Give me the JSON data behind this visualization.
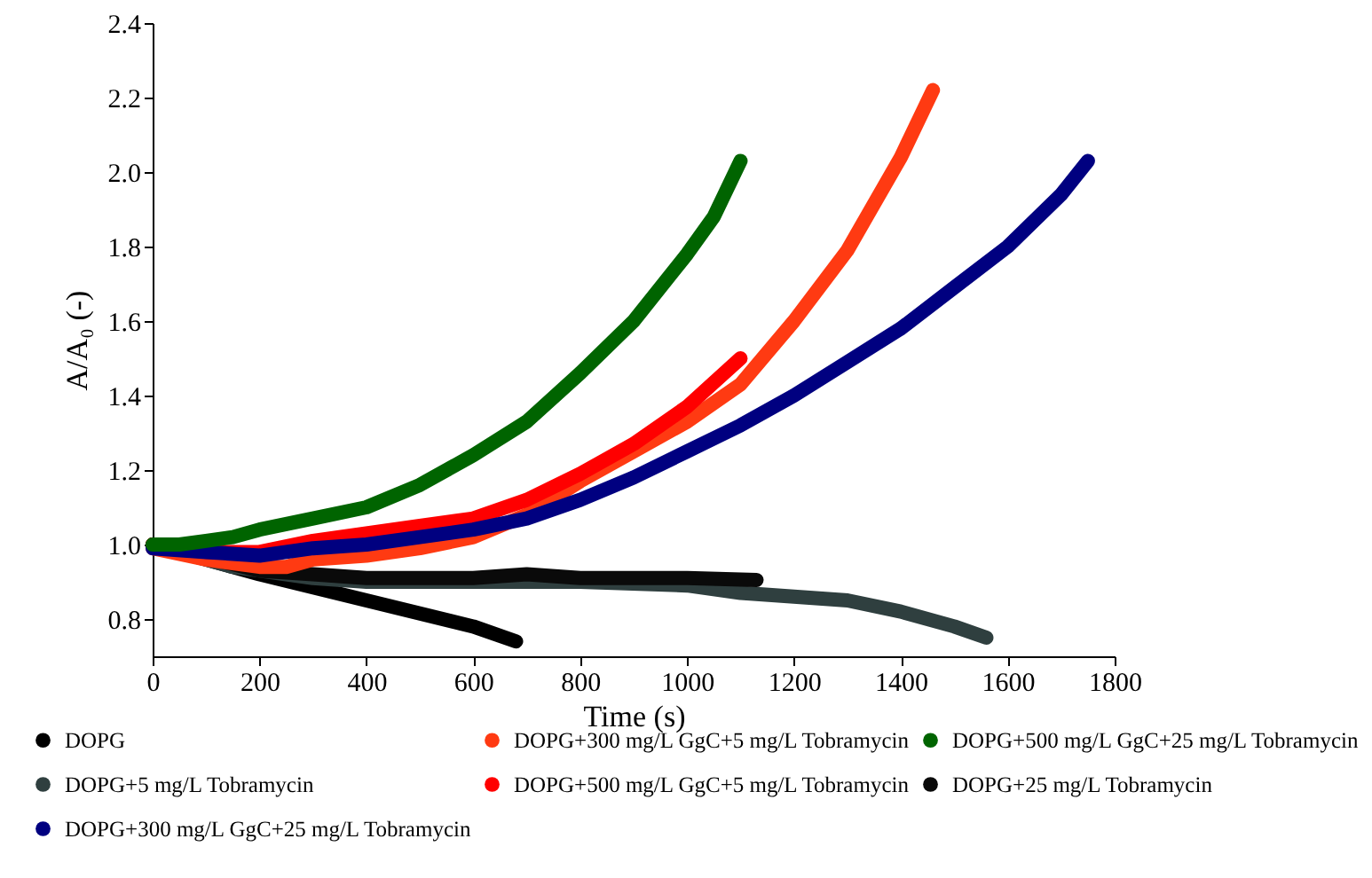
{
  "chart_data": {
    "type": "line",
    "xlabel": "Time (s)",
    "ylabel": "A/A₀ (-)",
    "xlim": [
      0,
      1800
    ],
    "xticks": [
      0,
      200,
      400,
      600,
      800,
      1000,
      1200,
      1400,
      1600,
      1800
    ],
    "ylim": [
      0.7,
      2.4
    ],
    "yticks": [
      0.8,
      {
        "value": 1,
        "label": "1.0"
      },
      1.2,
      1.4,
      1.6,
      1.8,
      {
        "value": 2,
        "label": "2.0"
      },
      2.2,
      2.4
    ],
    "grid": false,
    "legend": "bottom",
    "series": [
      {
        "name": "DOPG",
        "color": "#000000",
        "x": [
          0,
          200,
          400,
          600,
          680
        ],
        "values": [
          1.0,
          0.92,
          0.85,
          0.78,
          0.74
        ]
      },
      {
        "name": "DOPG+5 mg/L Tobramycin",
        "color": "#2f3f3f",
        "x": [
          0,
          150,
          250,
          300,
          400,
          600,
          800,
          1000,
          1100,
          1200,
          1300,
          1400,
          1500,
          1560
        ],
        "values": [
          1.0,
          0.94,
          0.92,
          0.91,
          0.9,
          0.9,
          0.9,
          0.89,
          0.87,
          0.86,
          0.85,
          0.82,
          0.78,
          0.75
        ]
      },
      {
        "name": "DOPG+25 mg/L Tobramycin",
        "color": "#0a0a0a",
        "x": [
          0,
          200,
          300,
          400,
          600,
          700,
          800,
          1000,
          1130
        ],
        "values": [
          1.0,
          0.93,
          0.92,
          0.91,
          0.91,
          0.92,
          0.91,
          0.91,
          0.905
        ]
      },
      {
        "name": "DOPG+300 mg/L GgC+5 mg/L Tobramycin",
        "color": "#ff3a12",
        "x": [
          0,
          100,
          200,
          250,
          300,
          400,
          500,
          600,
          700,
          800,
          900,
          1000,
          1100,
          1200,
          1300,
          1400,
          1460
        ],
        "values": [
          0.99,
          0.96,
          0.94,
          0.94,
          0.96,
          0.97,
          0.99,
          1.02,
          1.08,
          1.17,
          1.25,
          1.33,
          1.43,
          1.6,
          1.79,
          2.04,
          2.22
        ]
      },
      {
        "name": "DOPG+500 mg/L GgC+5 mg/L Tobramycin",
        "color": "#ff0000",
        "x": [
          0,
          100,
          200,
          300,
          400,
          500,
          600,
          700,
          800,
          900,
          1000,
          1100
        ],
        "values": [
          1.0,
          0.98,
          0.98,
          1.01,
          1.03,
          1.05,
          1.07,
          1.12,
          1.19,
          1.27,
          1.37,
          1.5
        ]
      },
      {
        "name": "DOPG+300 mg/L GgC+25 mg/L Tobramycin",
        "color": "#000080",
        "x": [
          0,
          100,
          200,
          300,
          400,
          500,
          600,
          700,
          800,
          900,
          1000,
          1100,
          1200,
          1300,
          1400,
          1500,
          1600,
          1700,
          1750
        ],
        "values": [
          0.99,
          0.98,
          0.97,
          0.99,
          1.0,
          1.02,
          1.04,
          1.07,
          1.12,
          1.18,
          1.25,
          1.32,
          1.4,
          1.49,
          1.58,
          1.69,
          1.8,
          1.94,
          2.03
        ]
      },
      {
        "name": "DOPG+500 mg/L GgC+25 mg/L Tobramycin",
        "color": "#006400",
        "x": [
          0,
          50,
          100,
          150,
          200,
          300,
          400,
          500,
          600,
          700,
          800,
          900,
          1000,
          1050,
          1100
        ],
        "values": [
          1.0,
          1.0,
          1.01,
          1.02,
          1.04,
          1.07,
          1.1,
          1.16,
          1.24,
          1.33,
          1.46,
          1.6,
          1.78,
          1.88,
          2.03
        ]
      }
    ]
  }
}
